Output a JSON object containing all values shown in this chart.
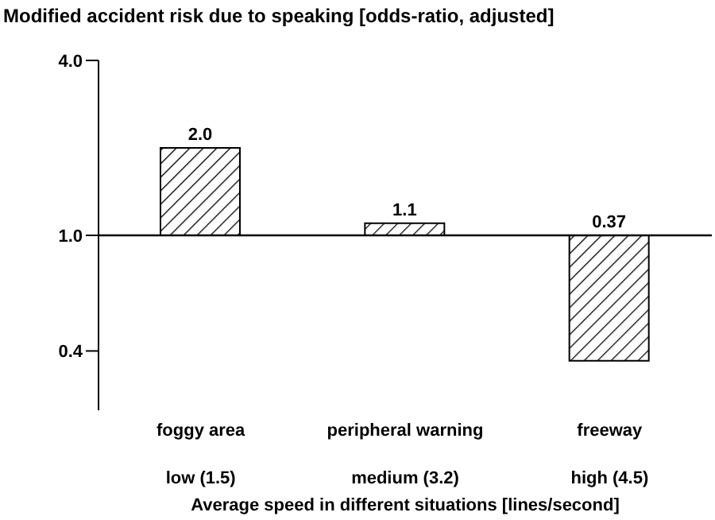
{
  "chart_data": {
    "type": "bar",
    "title": "Modified accident risk due to speaking [odds-ratio, adjusted]",
    "xlabel": "Average speed in different situations [lines/second]",
    "categories": [
      "low (1.5)",
      "medium (3.2)",
      "high (4.5)"
    ],
    "base": [
      1,
      1,
      1
    ],
    "values": [
      1.0,
      0.1,
      -0.63
    ],
    "value_labels": [
      "2.0",
      "1.1",
      "0.37"
    ],
    "color": "#000000",
    "log": "y",
    "ylim": [
      0.25,
      4
    ],
    "yticks": [
      {
        "value": 0.4,
        "label": "0.4"
      },
      {
        "value": 1,
        "label": "1.0"
      },
      {
        "value": 4,
        "label": "4.0"
      }
    ],
    "ref_lines": [
      {
        "axis": "y",
        "value": 1,
        "label": null,
        "color": "#000000"
      }
    ],
    "annotations": [
      "foggy area",
      "peripheral warning",
      "freeway"
    ]
  }
}
